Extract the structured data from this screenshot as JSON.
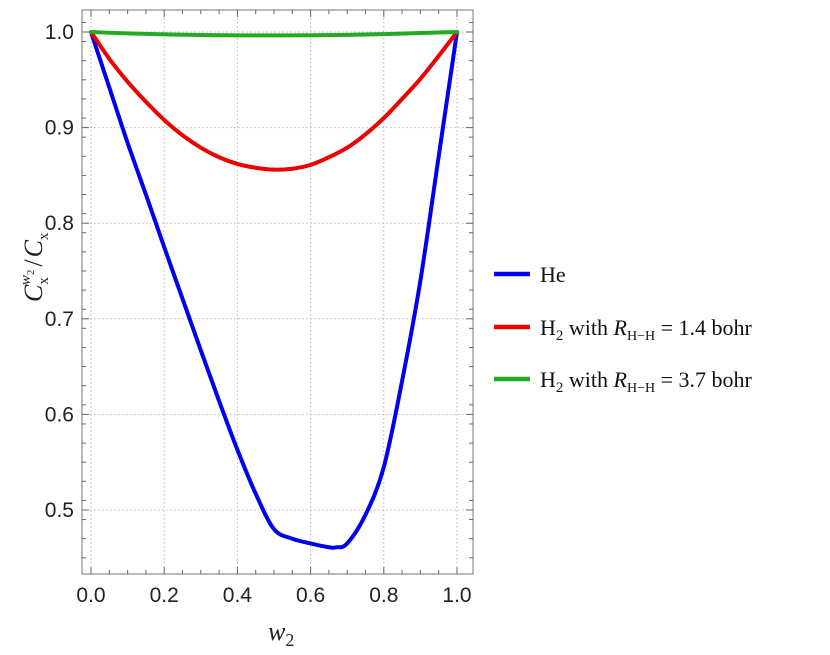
{
  "chart_data": {
    "type": "line",
    "xlabel": "w2",
    "ylabel": "C_x^{w2} / C_x",
    "xlim": [
      0.0,
      1.0
    ],
    "ylim": [
      0.44,
      1.03
    ],
    "x_ticks": [
      0.0,
      0.2,
      0.4,
      0.6,
      0.8,
      1.0
    ],
    "x_tick_labels": [
      "0.0",
      "0.2",
      "0.4",
      "0.6",
      "0.8",
      "1.0"
    ],
    "y_ticks": [
      0.5,
      0.6,
      0.7,
      0.8,
      0.9,
      1.0
    ],
    "y_tick_labels": [
      "0.5",
      "0.6",
      "0.7",
      "0.8",
      "0.9",
      "1.0"
    ],
    "grid": true,
    "legend_position": "right",
    "series": [
      {
        "name": "He",
        "color": "#0000ee",
        "x": [
          0.0,
          0.05,
          0.1,
          0.15,
          0.2,
          0.25,
          0.3,
          0.35,
          0.4,
          0.45,
          0.5,
          0.55,
          0.6,
          0.65,
          0.67,
          0.7,
          0.75,
          0.8,
          0.85,
          0.9,
          0.95,
          1.0
        ],
        "y": [
          1.0,
          0.942,
          0.884,
          0.83,
          0.775,
          0.721,
          0.667,
          0.614,
          0.563,
          0.517,
          0.48,
          0.47,
          0.465,
          0.461,
          0.461,
          0.465,
          0.495,
          0.545,
          0.635,
          0.74,
          0.87,
          1.0
        ]
      },
      {
        "name": "H2 with R_{H-H} = 1.4 bohr",
        "color": "#ee0000",
        "x": [
          0.0,
          0.05,
          0.1,
          0.15,
          0.2,
          0.25,
          0.3,
          0.35,
          0.4,
          0.45,
          0.5,
          0.55,
          0.6,
          0.65,
          0.7,
          0.75,
          0.8,
          0.85,
          0.9,
          0.95,
          1.0
        ],
        "y": [
          1.0,
          0.972,
          0.948,
          0.927,
          0.908,
          0.892,
          0.879,
          0.869,
          0.862,
          0.858,
          0.856,
          0.857,
          0.861,
          0.869,
          0.879,
          0.893,
          0.91,
          0.93,
          0.951,
          0.975,
          1.0
        ]
      },
      {
        "name": "H2 with R_{H-H} = 3.7 bohr",
        "color": "#22aa22",
        "x": [
          0.0,
          0.1,
          0.2,
          0.3,
          0.4,
          0.5,
          0.6,
          0.7,
          0.8,
          0.9,
          1.0
        ],
        "y": [
          1.0,
          0.9985,
          0.9975,
          0.9968,
          0.9965,
          0.9965,
          0.9966,
          0.997,
          0.9978,
          0.999,
          1.0
        ]
      }
    ],
    "legend": {
      "entries": [
        {
          "main": "He",
          "sub": "",
          "mid": "",
          "R": "",
          "Rsub": "",
          "tail": ""
        },
        {
          "main": "H",
          "sub": "2",
          "mid": " with ",
          "R": "R",
          "Rsub": "H−H",
          "tail": " = 1.4 bohr"
        },
        {
          "main": "H",
          "sub": "2",
          "mid": " with ",
          "R": "R",
          "Rsub": "H−H",
          "tail": " = 3.7 bohr"
        }
      ]
    },
    "axis_text": {
      "x_main": "w",
      "x_sub": "2",
      "y_C": "C",
      "y_x": "x",
      "y_w": "w",
      "y_2": "2",
      "y_slash": "/",
      "y_C2": "C",
      "y_x2": "x"
    }
  }
}
